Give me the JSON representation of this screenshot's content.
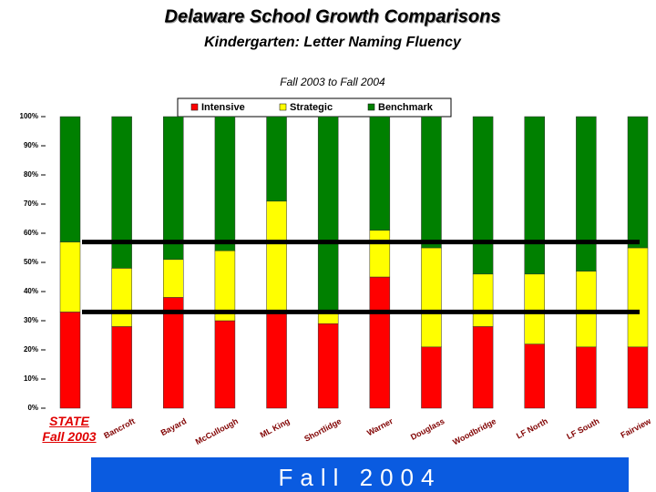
{
  "chart_data": {
    "type": "stacked_bar",
    "title": "Delaware School Growth Comparisons",
    "subtitle": "Kindergarten: Letter Naming Fluency",
    "caption": "Fall 2003 to Fall 2004",
    "footer": "Fall 2004",
    "categories": [
      "STATE Fall 2003",
      "Bancroft",
      "Bayard",
      "McCullough",
      "ML King",
      "Shortlidge",
      "Warner",
      "Douglass",
      "Woodbridge",
      "LF North",
      "LF South",
      "Fairview"
    ],
    "series": [
      {
        "name": "Intensive",
        "color": "#ff0000",
        "values": [
          33,
          28,
          38,
          30,
          33,
          29,
          45,
          21,
          28,
          22,
          21,
          21
        ]
      },
      {
        "name": "Strategic",
        "color": "#ffff00",
        "values": [
          24,
          20,
          13,
          24,
          38,
          4,
          16,
          34,
          18,
          24,
          26,
          34
        ]
      },
      {
        "name": "Benchmark",
        "color": "#008000",
        "values": [
          43,
          52,
          49,
          46,
          29,
          67,
          39,
          45,
          54,
          54,
          53,
          45
        ]
      }
    ],
    "ylim": [
      0,
      100
    ],
    "yticks": [
      {
        "value": 0,
        "label": "0%"
      },
      {
        "value": 10,
        "label": "10%"
      },
      {
        "value": 20,
        "label": "20%"
      },
      {
        "value": 30,
        "label": "30%"
      },
      {
        "value": 40,
        "label": "40%"
      },
      {
        "value": 50,
        "label": "50%"
      },
      {
        "value": 60,
        "label": "60%"
      },
      {
        "value": 70,
        "label": "70%"
      },
      {
        "value": 80,
        "label": "80%"
      },
      {
        "value": 90,
        "label": "90%"
      },
      {
        "value": 100,
        "label": "100%"
      }
    ]
  }
}
